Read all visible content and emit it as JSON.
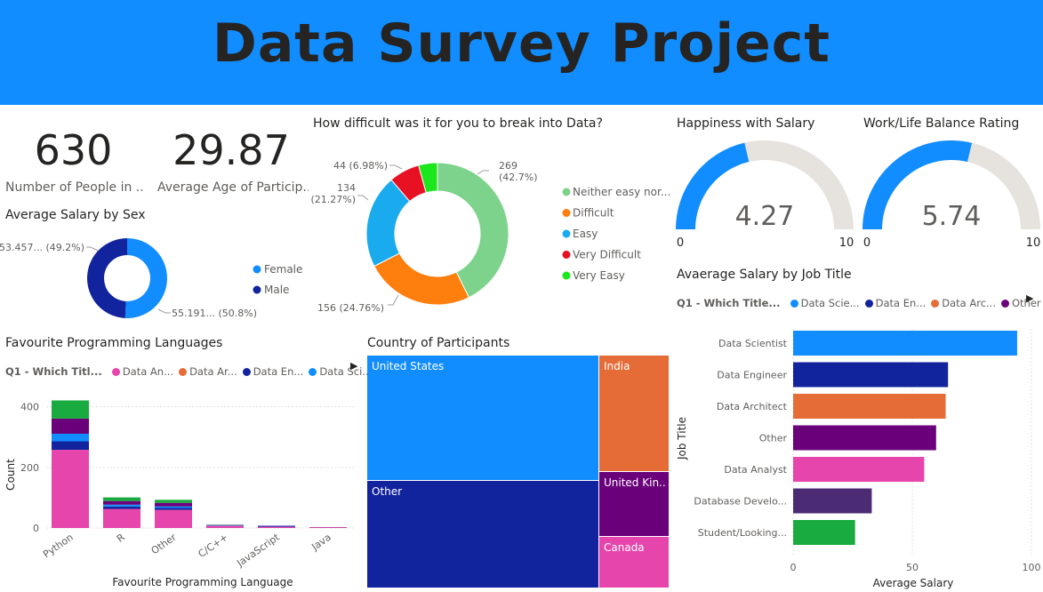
{
  "banner": {
    "title": "Data Survey Project",
    "color": "#118dff"
  },
  "kpis": [
    {
      "value": "630",
      "label": "Number of People in ..."
    },
    {
      "value": "29.87",
      "label": "Average Age of Particip..."
    }
  ],
  "chart_data": [
    {
      "id": "salary_by_sex",
      "type": "pie",
      "title": "Average Salary by Sex",
      "labels": [
        "Female",
        "Male"
      ],
      "values": [
        55191,
        53457
      ],
      "percents": [
        50.8,
        49.2
      ],
      "data_labels": [
        "55.191... (50.8%)",
        "53.457... (49.2%)"
      ],
      "colors": [
        "#118dff",
        "#12239e"
      ]
    },
    {
      "id": "difficulty",
      "type": "pie",
      "title": "How difficult was it for you to break into Data?",
      "labels": [
        "Neither easy nor...",
        "Difficult",
        "Easy",
        "Very Difficult",
        "Very Easy"
      ],
      "values": [
        269,
        156,
        134,
        44,
        27
      ],
      "data_labels": [
        "269\n(42.7%)",
        "156 (24.76%)",
        "134\n(21.27%)",
        "44 (6.98%)",
        ""
      ],
      "colors": [
        "#7dd38b",
        "#ff7f0e",
        "#1aabef",
        "#e81123",
        "#1ce71c"
      ]
    },
    {
      "id": "happiness_salary",
      "type": "gauge",
      "title": "Happiness with Salary",
      "value": 4.27,
      "value_label": "4.27",
      "min": 0,
      "max": 10,
      "min_label": "0",
      "max_label": "10",
      "fill_color": "#118dff",
      "track_color": "#e6e2dd"
    },
    {
      "id": "worklife",
      "type": "gauge",
      "title": "Work/Life Balance Rating",
      "value": 5.74,
      "value_label": "5.74",
      "min": 0,
      "max": 10,
      "min_label": "0",
      "max_label": "10",
      "fill_color": "#118dff",
      "track_color": "#e6e2dd"
    },
    {
      "id": "languages",
      "type": "bar",
      "title": "Favourite Programming Languages",
      "legend_title": "Q1 - Which Titl...",
      "legend": [
        {
          "name": "Data An...",
          "color": "#e645ab"
        },
        {
          "name": "Data Ar...",
          "color": "#e66c37"
        },
        {
          "name": "Data En...",
          "color": "#12239e"
        },
        {
          "name": "Data Sci...",
          "color": "#118dff"
        }
      ],
      "categories": [
        "Python",
        "R",
        "Other",
        "C/C++",
        "JavaScript",
        "Java"
      ],
      "series": [
        {
          "name": "Data An...",
          "color": "#e645ab",
          "values": [
            258,
            63,
            60,
            7,
            4,
            2
          ]
        },
        {
          "name": "Data En...",
          "color": "#12239e",
          "values": [
            28,
            8,
            6,
            1,
            2,
            0
          ]
        },
        {
          "name": "Data Sci...",
          "color": "#118dff",
          "values": [
            25,
            6,
            5,
            1,
            1,
            0
          ]
        },
        {
          "name": "",
          "color": "#6b007b",
          "values": [
            50,
            12,
            12,
            1,
            1,
            1
          ]
        },
        {
          "name": "",
          "color": "#1aab40",
          "values": [
            60,
            12,
            10,
            1,
            0,
            0
          ]
        }
      ],
      "xlabel": "Favourite Programming Language",
      "ylabel": "Count",
      "yticks": [
        0,
        200,
        400
      ],
      "ylim": [
        0,
        440
      ]
    },
    {
      "id": "country",
      "type": "treemap",
      "title": "Country of Participants",
      "items": [
        {
          "label": "United States",
          "color": "#118dff"
        },
        {
          "label": "Other",
          "color": "#12239e"
        },
        {
          "label": "India",
          "color": "#e66c37"
        },
        {
          "label": "United Kin...",
          "color": "#6b007b"
        },
        {
          "label": "Canada",
          "color": "#e645ab"
        }
      ]
    },
    {
      "id": "salary_by_job",
      "type": "bar",
      "orientation": "horizontal",
      "title": "Avaerage Salary by Job Title",
      "legend_title": "Q1 - Which Title...",
      "legend": [
        {
          "name": "Data Scie...",
          "color": "#118dff"
        },
        {
          "name": "Data En...",
          "color": "#12239e"
        },
        {
          "name": "Data Arc...",
          "color": "#e66c37"
        },
        {
          "name": "Other",
          "color": "#6b007b"
        }
      ],
      "categories": [
        "Data Scientist",
        "Data Engineer",
        "Data Architect",
        "Other",
        "Data Analyst",
        "Database Develo...",
        "Student/Looking..."
      ],
      "values": [
        94,
        65,
        64,
        60,
        55,
        33,
        26
      ],
      "colors": [
        "#118dff",
        "#12239e",
        "#e66c37",
        "#6b007b",
        "#e645ab",
        "#4b2c74",
        "#1aab40"
      ],
      "xlabel": "Average Salary",
      "ylabel": "Job Title",
      "xticks": [
        0,
        50,
        100
      ],
      "xlim": [
        0,
        100
      ]
    }
  ]
}
